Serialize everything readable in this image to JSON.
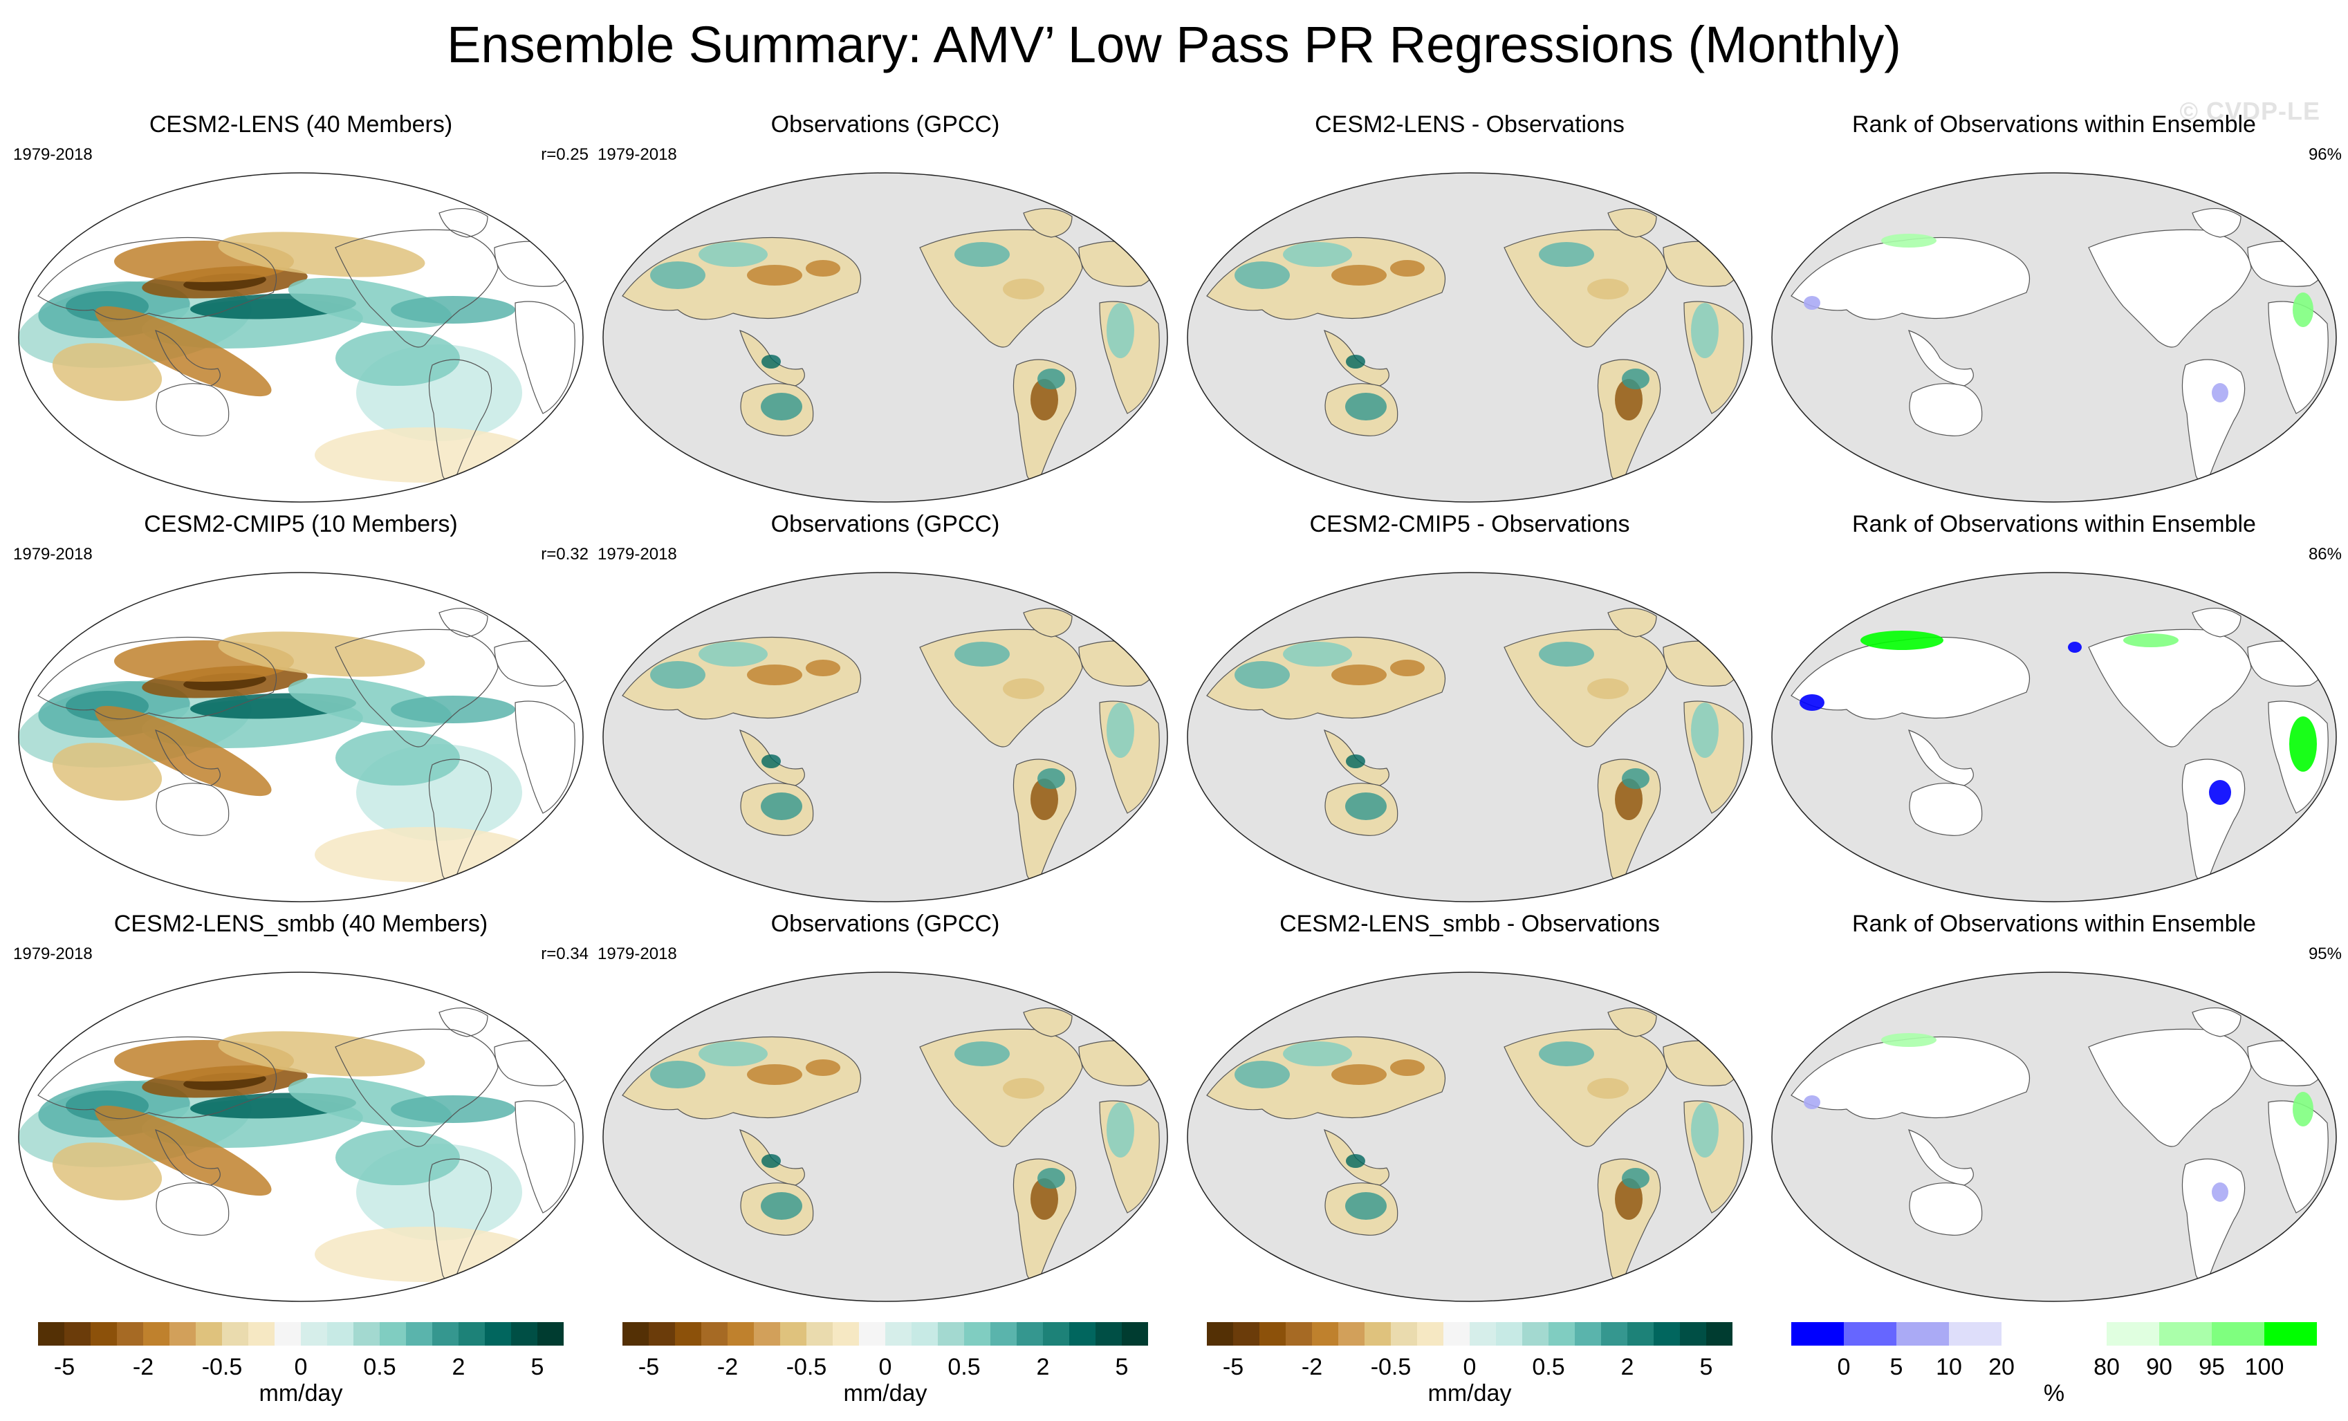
{
  "title": "Ensemble Summary: AMV’ Low Pass PR Regressions (Monthly)",
  "watermark": "© CVDP-LE",
  "rows": [
    {
      "panels": [
        {
          "title": "CESM2-LENS (40 Members)",
          "left": "1979-2018",
          "right": "r=0.25",
          "type": "model"
        },
        {
          "title": "Observations (GPCC)",
          "left": "1979-2018",
          "right": "",
          "type": "obs"
        },
        {
          "title": "CESM2-LENS - Observations",
          "left": "",
          "right": "",
          "type": "diff"
        },
        {
          "title": "Rank of Observations within Ensemble",
          "left": "",
          "right": "96%",
          "type": "rank"
        }
      ]
    },
    {
      "panels": [
        {
          "title": "CESM2-CMIP5 (10 Members)",
          "left": "1979-2018",
          "right": "r=0.32",
          "type": "model"
        },
        {
          "title": "Observations (GPCC)",
          "left": "1979-2018",
          "right": "",
          "type": "obs"
        },
        {
          "title": "CESM2-CMIP5 - Observations",
          "left": "",
          "right": "",
          "type": "diff"
        },
        {
          "title": "Rank of Observations within Ensemble",
          "left": "",
          "right": "86%",
          "type": "rank"
        }
      ]
    },
    {
      "panels": [
        {
          "title": "CESM2-LENS_smbb (40 Members)",
          "left": "1979-2018",
          "right": "r=0.34",
          "type": "model"
        },
        {
          "title": "Observations (GPCC)",
          "left": "1979-2018",
          "right": "",
          "type": "obs"
        },
        {
          "title": "CESM2-LENS_smbb - Observations",
          "left": "",
          "right": "",
          "type": "diff"
        },
        {
          "title": "Rank of Observations within Ensemble",
          "left": "",
          "right": "95%",
          "type": "rank"
        }
      ]
    }
  ],
  "colorbars": [
    {
      "units": "mm/day",
      "colors": [
        "#543005",
        "#6b3c0a",
        "#8c510a",
        "#a66a24",
        "#bf812d",
        "#d2a05a",
        "#dfc27d",
        "#eadbae",
        "#f6e8c3",
        "#f5f5f5",
        "#d6eeea",
        "#c7eae5",
        "#a3d9d0",
        "#80cdc1",
        "#5ab4ac",
        "#35978f",
        "#1d8278",
        "#01665e",
        "#004f45",
        "#003c30"
      ],
      "ticks": [
        {
          "label": "-5",
          "pos": 0.05
        },
        {
          "label": "-2",
          "pos": 0.2
        },
        {
          "label": "-0.5",
          "pos": 0.35
        },
        {
          "label": "0",
          "pos": 0.5
        },
        {
          "label": "0.5",
          "pos": 0.65
        },
        {
          "label": "2",
          "pos": 0.8
        },
        {
          "label": "5",
          "pos": 0.95
        }
      ]
    },
    {
      "units": "mm/day",
      "colors": [
        "#543005",
        "#6b3c0a",
        "#8c510a",
        "#a66a24",
        "#bf812d",
        "#d2a05a",
        "#dfc27d",
        "#eadbae",
        "#f6e8c3",
        "#f5f5f5",
        "#d6eeea",
        "#c7eae5",
        "#a3d9d0",
        "#80cdc1",
        "#5ab4ac",
        "#35978f",
        "#1d8278",
        "#01665e",
        "#004f45",
        "#003c30"
      ],
      "ticks": [
        {
          "label": "-5",
          "pos": 0.05
        },
        {
          "label": "-2",
          "pos": 0.2
        },
        {
          "label": "-0.5",
          "pos": 0.35
        },
        {
          "label": "0",
          "pos": 0.5
        },
        {
          "label": "0.5",
          "pos": 0.65
        },
        {
          "label": "2",
          "pos": 0.8
        },
        {
          "label": "5",
          "pos": 0.95
        }
      ]
    },
    {
      "units": "mm/day",
      "colors": [
        "#543005",
        "#6b3c0a",
        "#8c510a",
        "#a66a24",
        "#bf812d",
        "#d2a05a",
        "#dfc27d",
        "#eadbae",
        "#f6e8c3",
        "#f5f5f5",
        "#d6eeea",
        "#c7eae5",
        "#a3d9d0",
        "#80cdc1",
        "#5ab4ac",
        "#35978f",
        "#1d8278",
        "#01665e",
        "#004f45",
        "#003c30"
      ],
      "ticks": [
        {
          "label": "-5",
          "pos": 0.05
        },
        {
          "label": "-2",
          "pos": 0.2
        },
        {
          "label": "-0.5",
          "pos": 0.35
        },
        {
          "label": "0",
          "pos": 0.5
        },
        {
          "label": "0.5",
          "pos": 0.65
        },
        {
          "label": "2",
          "pos": 0.8
        },
        {
          "label": "5",
          "pos": 0.95
        }
      ]
    },
    {
      "units": "%",
      "colors": [
        "#0000ff",
        "#6666ff",
        "#aaaaf5",
        "#dedefa",
        "#ffffff",
        "#ffffff",
        "#e0ffe0",
        "#aaffaa",
        "#7fff7f",
        "#00ff00"
      ],
      "ticks": [
        {
          "label": "0",
          "pos": 0.1
        },
        {
          "label": "5",
          "pos": 0.2
        },
        {
          "label": "10",
          "pos": 0.3
        },
        {
          "label": "20",
          "pos": 0.4
        },
        {
          "label": "80",
          "pos": 0.6
        },
        {
          "label": "90",
          "pos": 0.7
        },
        {
          "label": "95",
          "pos": 0.8
        },
        {
          "label": "100",
          "pos": 0.9
        }
      ]
    }
  ]
}
